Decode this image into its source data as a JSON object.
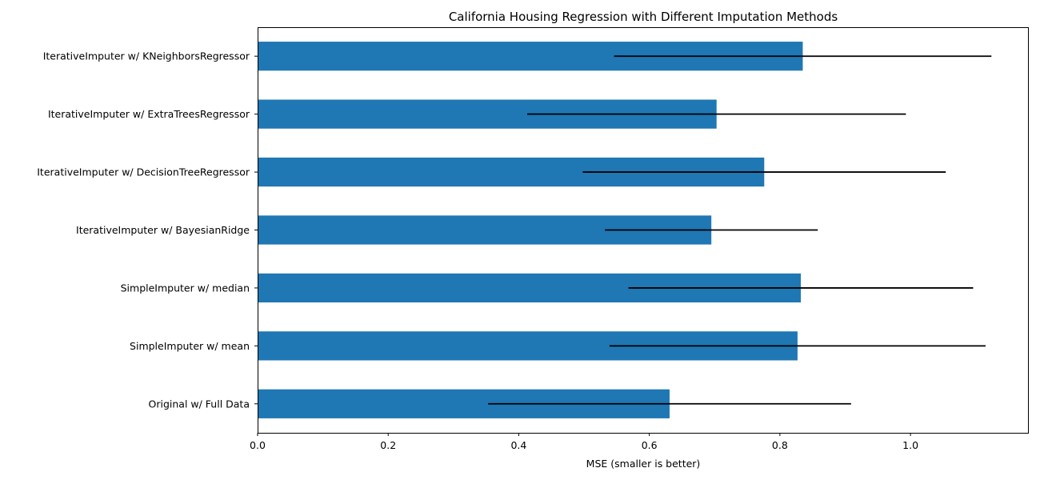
{
  "chart_data": {
    "type": "bar",
    "orientation": "horizontal",
    "title": "California Housing Regression with Different Imputation Methods",
    "xlabel": "MSE (smaller is better)",
    "ylabel": "",
    "xlim": [
      0.0,
      1.18
    ],
    "xticks": [
      0.0,
      0.2,
      0.4,
      0.6,
      0.8,
      1.0
    ],
    "xtick_labels": [
      "0.0",
      "0.2",
      "0.4",
      "0.6",
      "0.8",
      "1.0"
    ],
    "grid": false,
    "bar_color": "#1f77b4",
    "error_color": "#000000",
    "categories": [
      "Original w/ Full Data",
      "SimpleImputer w/ mean",
      "SimpleImputer w/ median",
      "IterativeImputer w/ BayesianRidge",
      "IterativeImputer w/ DecisionTreeRegressor",
      "IterativeImputer w/ ExtraTreesRegressor",
      "IterativeImputer w/ KNeighborsRegressor"
    ],
    "values": [
      0.631,
      0.827,
      0.832,
      0.695,
      0.776,
      0.703,
      0.835
    ],
    "errors": [
      0.278,
      0.288,
      0.264,
      0.163,
      0.278,
      0.29,
      0.289
    ]
  }
}
